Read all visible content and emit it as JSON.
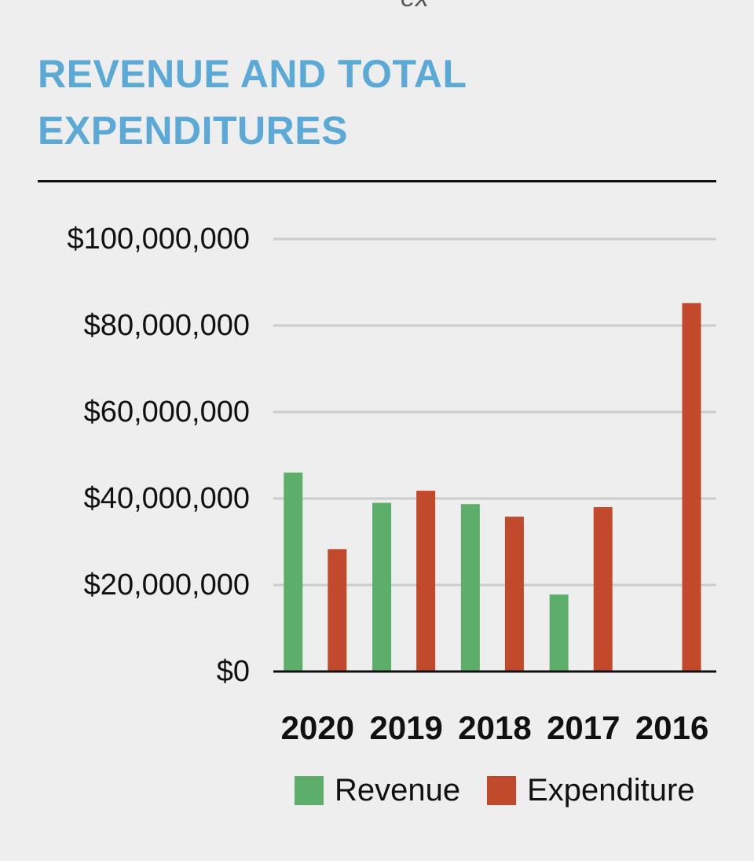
{
  "page": {
    "top_fragment": "ex"
  },
  "chart_data": {
    "type": "bar",
    "title": "REVENUE AND TOTAL EXPENDITURES",
    "categories": [
      "2020",
      "2019",
      "2018",
      "2017",
      "2016"
    ],
    "series": [
      {
        "name": "Revenue",
        "color": "#5eae6b",
        "values": [
          46000000,
          39000000,
          38700000,
          17800000,
          null
        ]
      },
      {
        "name": "Expenditure",
        "color": "#c24a2c",
        "values": [
          28300000,
          41800000,
          35800000,
          38000000,
          85200000
        ]
      }
    ],
    "yticks": [
      "$0",
      "$20,000,000",
      "$40,000,000",
      "$60,000,000",
      "$80,000,000",
      "$100,000,000"
    ],
    "ylim": [
      0,
      100000000
    ],
    "xlabel": "",
    "ylabel": "",
    "grid": true,
    "legend_position": "bottom-right"
  }
}
